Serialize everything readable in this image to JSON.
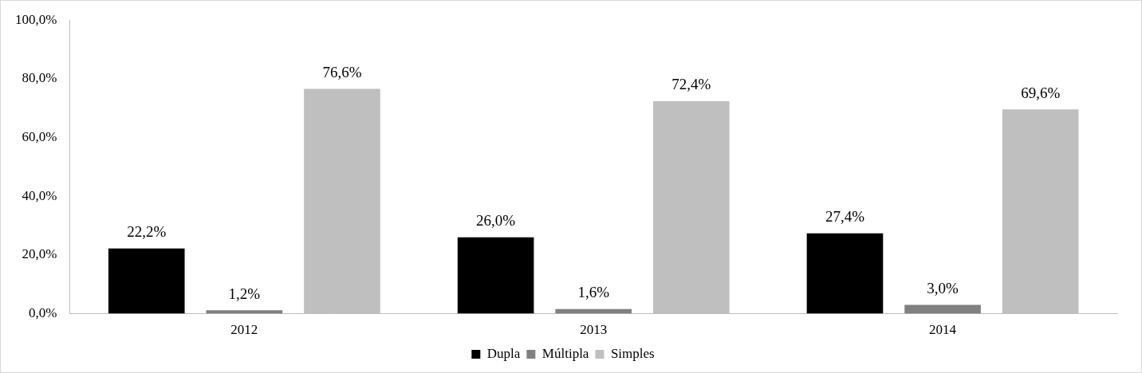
{
  "chart_data": {
    "type": "bar",
    "categories": [
      "2012",
      "2013",
      "2014"
    ],
    "series": [
      {
        "name": "Dupla",
        "color": "#000000",
        "values": [
          22.2,
          26.0,
          27.4
        ],
        "value_labels": [
          "22,2%",
          "26,0%",
          "27,4%"
        ]
      },
      {
        "name": "Múltipla",
        "color": "#808080",
        "values": [
          1.2,
          1.6,
          3.0
        ],
        "value_labels": [
          "1,2%",
          "1,6%",
          "3,0%"
        ]
      },
      {
        "name": "Simples",
        "color": "#bfbfbf",
        "values": [
          76.6,
          72.4,
          69.6
        ],
        "value_labels": [
          "76,6%",
          "72,4%",
          "69,6%"
        ]
      }
    ],
    "ylim": [
      0,
      100
    ],
    "yticks": [
      {
        "value": 0,
        "label": "0,0%"
      },
      {
        "value": 20,
        "label": "20,0%"
      },
      {
        "value": 40,
        "label": "40,0%"
      },
      {
        "value": 60,
        "label": "60,0%"
      },
      {
        "value": 80,
        "label": "80,0%"
      },
      {
        "value": 100,
        "label": "100,0%"
      }
    ],
    "grid": false,
    "legend": "bottom",
    "data_labels": true
  }
}
